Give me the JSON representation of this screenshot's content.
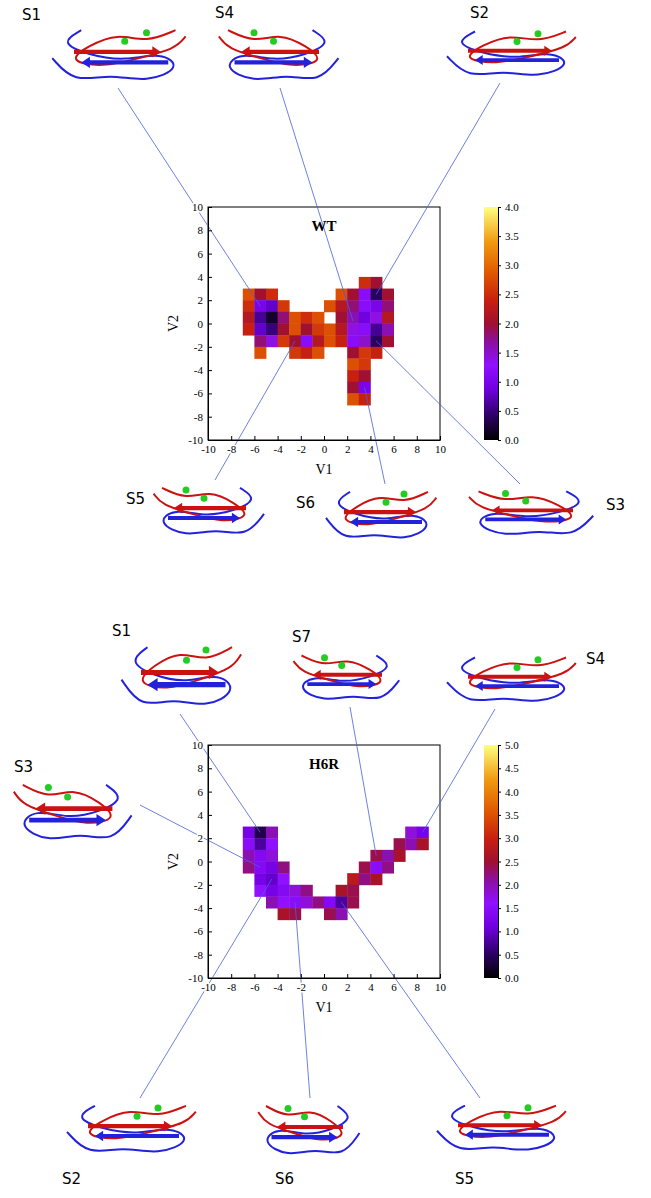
{
  "chart_data": [
    {
      "type": "heatmap",
      "title": "WT",
      "x_label": "V1",
      "y_label": "V2",
      "xlim": [
        -10,
        10
      ],
      "ylim": [
        -10,
        10
      ],
      "xticks": [
        -10,
        -8,
        -6,
        -4,
        -2,
        0,
        2,
        4,
        6,
        8,
        10
      ],
      "yticks": [
        -10,
        -8,
        -6,
        -4,
        -2,
        0,
        2,
        4,
        6,
        8,
        10
      ],
      "bin_size": 1,
      "cells": [
        [
          3,
          3,
          2.5
        ],
        [
          4,
          3,
          2.0
        ],
        [
          -7,
          2,
          2.8
        ],
        [
          -6,
          2,
          2.0
        ],
        [
          -5,
          2,
          2.5
        ],
        [
          1,
          2,
          2.8
        ],
        [
          2,
          2,
          2.0
        ],
        [
          3,
          2,
          1.2
        ],
        [
          4,
          2,
          0.4
        ],
        [
          5,
          2,
          2.0
        ],
        [
          -7,
          1,
          2.5
        ],
        [
          -6,
          1,
          1.0
        ],
        [
          -5,
          1,
          0.8
        ],
        [
          -4,
          1,
          2.6
        ],
        [
          0,
          1,
          2.8
        ],
        [
          1,
          1,
          2.2
        ],
        [
          2,
          1,
          1.8
        ],
        [
          3,
          1,
          1.2
        ],
        [
          4,
          1,
          1.0
        ],
        [
          5,
          1,
          1.8
        ],
        [
          -7,
          0,
          2.2
        ],
        [
          -6,
          0,
          0.6
        ],
        [
          -5,
          0,
          0.2
        ],
        [
          -4,
          0,
          1.8
        ],
        [
          -3,
          0,
          2.8
        ],
        [
          -2,
          0,
          2.5
        ],
        [
          -1,
          0,
          2.8
        ],
        [
          1,
          0,
          2.0
        ],
        [
          2,
          0,
          1.6
        ],
        [
          3,
          0,
          0.9
        ],
        [
          4,
          0,
          1.4
        ],
        [
          5,
          0,
          2.2
        ],
        [
          -7,
          -1,
          2.4
        ],
        [
          -6,
          -1,
          0.8
        ],
        [
          -5,
          -1,
          0.5
        ],
        [
          -4,
          -1,
          2.0
        ],
        [
          -3,
          -1,
          2.8
        ],
        [
          -2,
          -1,
          2.0
        ],
        [
          -1,
          -1,
          2.6
        ],
        [
          0,
          -1,
          2.8
        ],
        [
          1,
          -1,
          2.2
        ],
        [
          2,
          -1,
          1.4
        ],
        [
          3,
          -1,
          1.2
        ],
        [
          4,
          -1,
          0.6
        ],
        [
          5,
          -1,
          1.6
        ],
        [
          -6,
          -2,
          1.8
        ],
        [
          -5,
          -2,
          1.4
        ],
        [
          -4,
          -2,
          2.6
        ],
        [
          -3,
          -2,
          2.0
        ],
        [
          -2,
          -2,
          1.2
        ],
        [
          -1,
          -2,
          2.2
        ],
        [
          0,
          -2,
          2.8
        ],
        [
          1,
          -2,
          2.4
        ],
        [
          2,
          -2,
          1.2
        ],
        [
          3,
          -2,
          1.5
        ],
        [
          4,
          -2,
          0.4
        ],
        [
          5,
          -2,
          2.0
        ],
        [
          -6,
          -3,
          2.8
        ],
        [
          -3,
          -3,
          2.6
        ],
        [
          -2,
          -3,
          2.4
        ],
        [
          -1,
          -3,
          2.8
        ],
        [
          2,
          -3,
          2.0
        ],
        [
          3,
          -3,
          2.6
        ],
        [
          4,
          -3,
          2.4
        ],
        [
          2,
          -4,
          2.8
        ],
        [
          3,
          -4,
          2.6
        ],
        [
          2,
          -5,
          2.4
        ],
        [
          3,
          -5,
          2.0
        ],
        [
          2,
          -6,
          2.0
        ],
        [
          3,
          -6,
          1.0
        ],
        [
          2,
          -7,
          2.8
        ],
        [
          3,
          -7,
          2.4
        ]
      ],
      "colorbar": {
        "range": [
          0,
          4
        ],
        "ticks": [
          {
            "value": 0,
            "label": "0.0"
          },
          {
            "value": 0.5,
            "label": "0.5"
          },
          {
            "value": 1,
            "label": "1.0"
          },
          {
            "value": 1.5,
            "label": "1.5"
          },
          {
            "value": 2,
            "label": "2.0"
          },
          {
            "value": 2.5,
            "label": "2.5"
          },
          {
            "value": 3,
            "label": "3.0"
          },
          {
            "value": 3.5,
            "label": "3.5"
          },
          {
            "value": 4,
            "label": "4.0"
          }
        ]
      },
      "annotations": [
        {
          "text": "S1",
          "x": -5.5,
          "y": 1.5
        },
        {
          "text": "S4",
          "x": 2.5,
          "y": 0.2
        },
        {
          "text": "S2",
          "x": 4.5,
          "y": 2.5
        },
        {
          "text": "S5",
          "x": -2.5,
          "y": -1.5
        },
        {
          "text": "S6",
          "x": 3.5,
          "y": -5.5
        },
        {
          "text": "S3",
          "x": 4.5,
          "y": -1.5
        }
      ]
    },
    {
      "type": "heatmap",
      "title": "H6R",
      "x_label": "V1",
      "y_label": "V2",
      "xlim": [
        -10,
        10
      ],
      "ylim": [
        -10,
        10
      ],
      "xticks": [
        -10,
        -8,
        -6,
        -4,
        -2,
        0,
        2,
        4,
        6,
        8,
        10
      ],
      "yticks": [
        -10,
        -8,
        -6,
        -4,
        -2,
        0,
        2,
        4,
        6,
        8,
        10
      ],
      "bin_size": 1,
      "cells": [
        [
          -7,
          2,
          1.2
        ],
        [
          -6,
          2,
          0.4
        ],
        [
          -5,
          2,
          2.0
        ],
        [
          7,
          2,
          1.8
        ],
        [
          8,
          2,
          1.2
        ],
        [
          -7,
          1,
          1.5
        ],
        [
          -6,
          1,
          0.8
        ],
        [
          -5,
          1,
          1.6
        ],
        [
          6,
          1,
          2.4
        ],
        [
          7,
          1,
          2.0
        ],
        [
          8,
          1,
          2.6
        ],
        [
          -7,
          0,
          2.0
        ],
        [
          -6,
          0,
          1.4
        ],
        [
          -5,
          0,
          1.8
        ],
        [
          4,
          0,
          2.4
        ],
        [
          5,
          0,
          2.0
        ],
        [
          6,
          0,
          2.6
        ],
        [
          -7,
          -1,
          2.2
        ],
        [
          -6,
          -1,
          1.4
        ],
        [
          -5,
          -1,
          1.2
        ],
        [
          -4,
          -1,
          2.2
        ],
        [
          3,
          -1,
          2.4
        ],
        [
          4,
          -1,
          1.5
        ],
        [
          5,
          -1,
          2.2
        ],
        [
          -6,
          -2,
          1.2
        ],
        [
          -5,
          -2,
          1.0
        ],
        [
          -4,
          -2,
          1.6
        ],
        [
          2,
          -2,
          2.8
        ],
        [
          3,
          -2,
          2.2
        ],
        [
          4,
          -2,
          2.6
        ],
        [
          -6,
          -3,
          1.6
        ],
        [
          -5,
          -3,
          1.2
        ],
        [
          -4,
          -3,
          1.4
        ],
        [
          -3,
          -3,
          1.8
        ],
        [
          -2,
          -3,
          2.2
        ],
        [
          1,
          -3,
          2.6
        ],
        [
          2,
          -3,
          2.4
        ],
        [
          -5,
          -4,
          2.0
        ],
        [
          -4,
          -4,
          1.6
        ],
        [
          -3,
          -4,
          1.5
        ],
        [
          -2,
          -4,
          1.8
        ],
        [
          -1,
          -4,
          2.2
        ],
        [
          0,
          -4,
          1.4
        ],
        [
          1,
          -4,
          0.8
        ],
        [
          2,
          -4,
          2.4
        ],
        [
          -4,
          -5,
          2.6
        ],
        [
          -3,
          -5,
          2.4
        ],
        [
          0,
          -5,
          2.4
        ],
        [
          1,
          -5,
          2.0
        ]
      ],
      "colorbar": {
        "range": [
          0,
          5
        ],
        "ticks": [
          {
            "value": 0,
            "label": "0.0"
          },
          {
            "value": 0.5,
            "label": "0.5"
          },
          {
            "value": 1,
            "label": "1.0"
          },
          {
            "value": 1.5,
            "label": "1.5"
          },
          {
            "value": 2,
            "label": "2.0"
          },
          {
            "value": 2.5,
            "label": "2.5"
          },
          {
            "value": 3,
            "label": "3.0"
          },
          {
            "value": 3.5,
            "label": "3.5"
          },
          {
            "value": 4,
            "label": "4.0"
          },
          {
            "value": 4.5,
            "label": "4.5"
          },
          {
            "value": 5,
            "label": "5.0"
          }
        ]
      },
      "annotations": [
        {
          "text": "S1",
          "x": -5.5,
          "y": 2.5
        },
        {
          "text": "S7",
          "x": 4.5,
          "y": 0.5
        },
        {
          "text": "S4",
          "x": 8.5,
          "y": 2.5
        },
        {
          "text": "S3",
          "x": -5.5,
          "y": -0.5
        },
        {
          "text": "S2",
          "x": -4.5,
          "y": -1.5
        },
        {
          "text": "S6",
          "x": -2.5,
          "y": -3.5
        },
        {
          "text": "S5",
          "x": 1.5,
          "y": -3.5
        }
      ]
    }
  ]
}
